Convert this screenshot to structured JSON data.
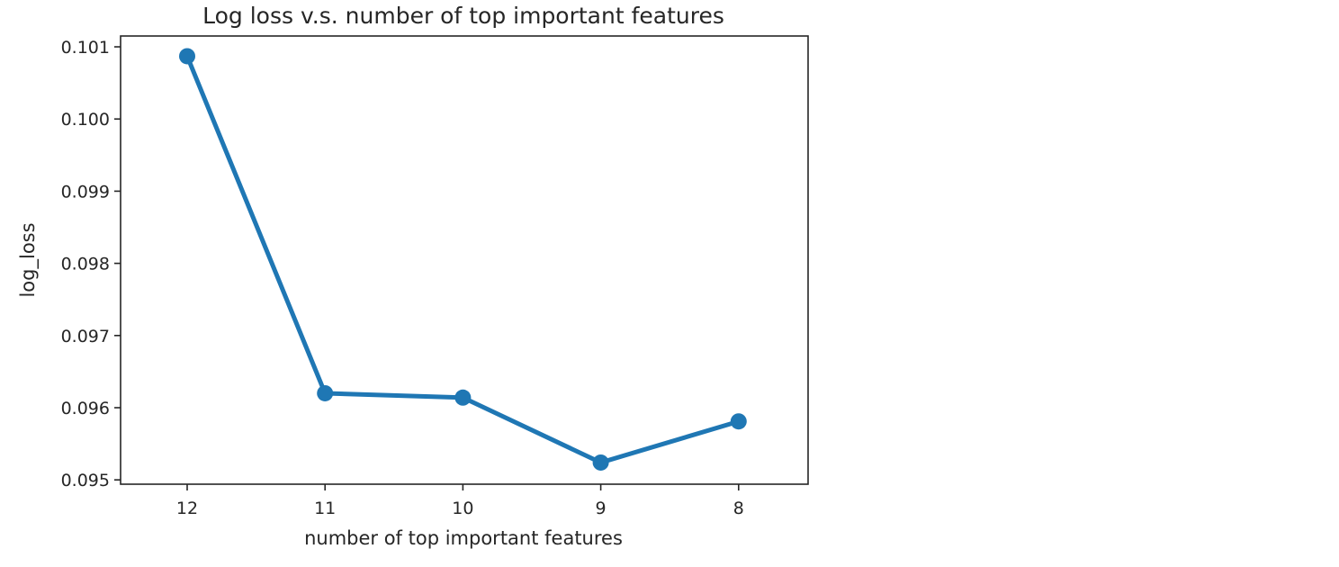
{
  "chart_data": {
    "type": "line",
    "title": "Log loss v.s. number of top important features",
    "xlabel": "number of top important features",
    "ylabel": "log_loss",
    "categories": [
      "12",
      "11",
      "10",
      "9",
      "8"
    ],
    "series": [
      {
        "values": [
          0.10087,
          0.0962,
          0.09614,
          0.09524,
          0.09581
        ],
        "color": "#1f77b4"
      }
    ],
    "ylim": [
      0.09494,
      0.10115
    ],
    "yticks": [
      0.095,
      0.096,
      0.097,
      0.098,
      0.099,
      0.1,
      0.101
    ],
    "ytick_labels": [
      "0.095",
      "0.096",
      "0.097",
      "0.098",
      "0.099",
      "0.100",
      "0.101"
    ],
    "grid": false,
    "legend": "none"
  }
}
